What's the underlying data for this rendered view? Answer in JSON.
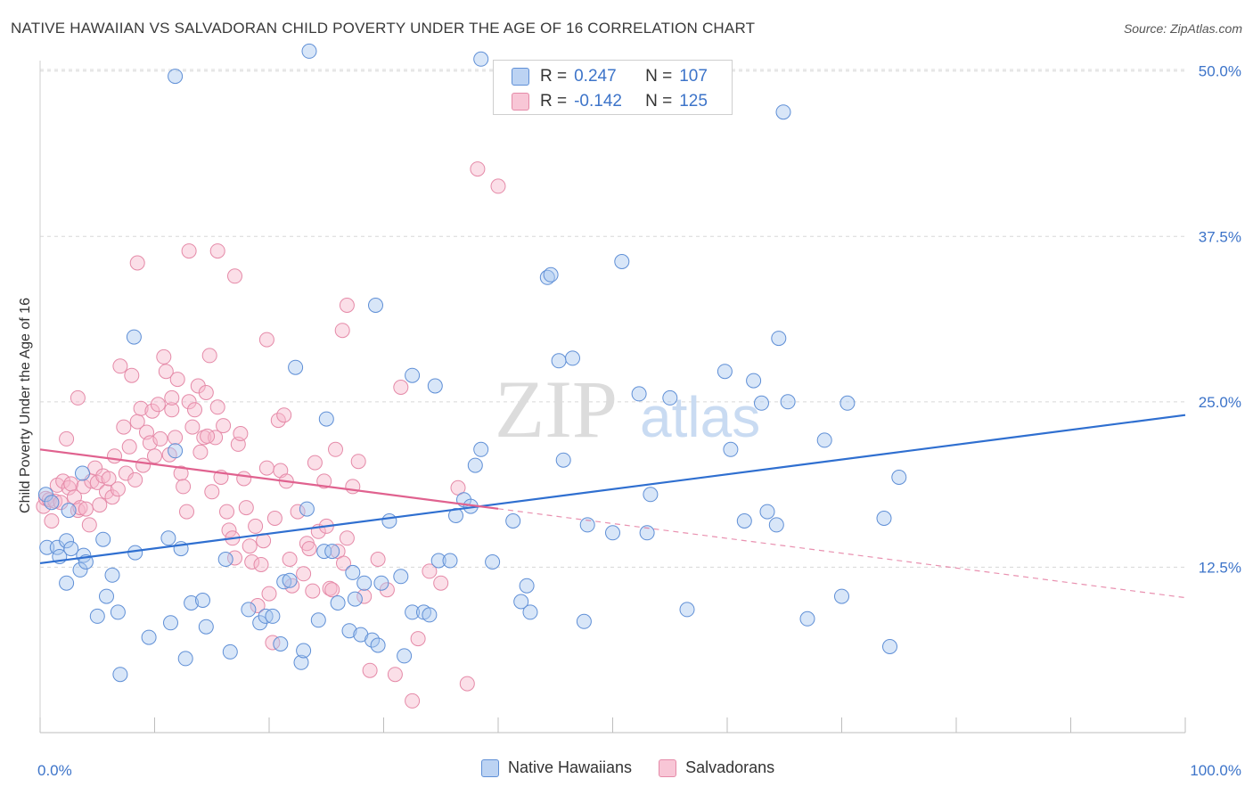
{
  "title": "NATIVE HAWAIIAN VS SALVADORAN CHILD POVERTY UNDER THE AGE OF 16 CORRELATION CHART",
  "source": "Source: ZipAtlas.com",
  "watermark": {
    "zip": "ZIP",
    "atlas": "atlas"
  },
  "legend_top": [
    {
      "r_label": "R =",
      "r_value": "0.247",
      "n_label": "N =",
      "n_value": "107"
    },
    {
      "r_label": "R =",
      "r_value": "-0.142",
      "n_label": "N =",
      "n_value": "125"
    }
  ],
  "bottom_legend": [
    "Native Hawaiians",
    "Salvadorans"
  ],
  "colors": {
    "blue_fill": "#a9c7ef",
    "blue_stroke": "#5f8fd6",
    "blue_line": "#2f6fd0",
    "pink_fill": "#f6b8cc",
    "pink_stroke": "#e58aa8",
    "pink_line": "#e0628f",
    "tick_text": "#3d74c9"
  },
  "chart_data": {
    "type": "scatter",
    "title": "NATIVE HAWAIIAN VS SALVADORAN CHILD POVERTY UNDER THE AGE OF 16 CORRELATION CHART",
    "xlabel": "",
    "ylabel": "Child Poverty Under the Age of 16",
    "xlim": [
      0,
      100
    ],
    "ylim": [
      0,
      52
    ],
    "x_tick_labels": [
      "0.0%",
      "100.0%"
    ],
    "y_ticks": [
      12.5,
      25.0,
      37.5,
      50.0
    ],
    "y_tick_labels": [
      "12.5%",
      "25.0%",
      "37.5%",
      "50.0%"
    ],
    "series": [
      {
        "name": "Native Hawaiians",
        "R": 0.247,
        "N": 107,
        "trend": {
          "x": [
            0,
            100
          ],
          "y": [
            12.8,
            24.0
          ],
          "dashed_from": null
        },
        "points": [
          [
            0.5,
            18.0
          ],
          [
            0.6,
            14.0
          ],
          [
            1.0,
            17.4
          ],
          [
            1.5,
            14.0
          ],
          [
            1.7,
            13.3
          ],
          [
            2.3,
            11.3
          ],
          [
            2.3,
            14.5
          ],
          [
            2.5,
            16.8
          ],
          [
            2.7,
            13.9
          ],
          [
            3.5,
            12.3
          ],
          [
            3.7,
            19.6
          ],
          [
            3.8,
            13.4
          ],
          [
            4.0,
            12.9
          ],
          [
            5.0,
            8.8
          ],
          [
            5.5,
            14.6
          ],
          [
            5.8,
            10.3
          ],
          [
            6.3,
            11.9
          ],
          [
            6.8,
            9.1
          ],
          [
            7.0,
            4.4
          ],
          [
            8.2,
            29.9
          ],
          [
            8.3,
            13.6
          ],
          [
            9.5,
            7.2
          ],
          [
            11.2,
            14.7
          ],
          [
            11.4,
            8.3
          ],
          [
            11.8,
            21.3
          ],
          [
            12.3,
            13.9
          ],
          [
            12.7,
            5.6
          ],
          [
            13.2,
            9.8
          ],
          [
            14.2,
            10.0
          ],
          [
            14.5,
            8.0
          ],
          [
            16.2,
            13.1
          ],
          [
            16.6,
            6.1
          ],
          [
            18.2,
            9.3
          ],
          [
            19.2,
            8.3
          ],
          [
            19.7,
            8.8
          ],
          [
            20.3,
            8.8
          ],
          [
            21.0,
            6.7
          ],
          [
            21.3,
            11.4
          ],
          [
            21.8,
            11.5
          ],
          [
            22.3,
            27.6
          ],
          [
            22.8,
            5.3
          ],
          [
            23.0,
            6.2
          ],
          [
            23.3,
            16.9
          ],
          [
            24.3,
            8.5
          ],
          [
            24.8,
            13.7
          ],
          [
            25.0,
            23.7
          ],
          [
            25.5,
            13.7
          ],
          [
            26.0,
            9.8
          ],
          [
            27.0,
            7.7
          ],
          [
            27.3,
            12.1
          ],
          [
            27.5,
            10.1
          ],
          [
            28.0,
            7.4
          ],
          [
            28.3,
            11.3
          ],
          [
            29.0,
            7.0
          ],
          [
            29.3,
            32.3
          ],
          [
            29.5,
            6.6
          ],
          [
            29.8,
            11.3
          ],
          [
            30.5,
            16.0
          ],
          [
            31.5,
            11.8
          ],
          [
            31.8,
            5.8
          ],
          [
            32.5,
            9.1
          ],
          [
            32.5,
            27.0
          ],
          [
            33.5,
            9.1
          ],
          [
            34.0,
            8.9
          ],
          [
            34.8,
            13.0
          ],
          [
            34.5,
            26.2
          ],
          [
            35.8,
            13.0
          ],
          [
            36.3,
            16.4
          ],
          [
            37.0,
            17.6
          ],
          [
            37.6,
            17.1
          ],
          [
            38.0,
            20.2
          ],
          [
            38.5,
            21.4
          ],
          [
            39.5,
            12.9
          ],
          [
            41.3,
            16.0
          ],
          [
            42.0,
            9.9
          ],
          [
            42.5,
            11.1
          ],
          [
            42.8,
            9.1
          ],
          [
            44.3,
            34.4
          ],
          [
            44.6,
            34.6
          ],
          [
            45.3,
            28.1
          ],
          [
            45.7,
            20.6
          ],
          [
            46.5,
            28.3
          ],
          [
            47.5,
            8.4
          ],
          [
            47.8,
            15.7
          ],
          [
            50.0,
            15.1
          ],
          [
            50.8,
            35.6
          ],
          [
            52.3,
            25.6
          ],
          [
            53.0,
            15.1
          ],
          [
            53.3,
            18.0
          ],
          [
            55.0,
            25.3
          ],
          [
            56.5,
            9.3
          ],
          [
            59.8,
            27.3
          ],
          [
            60.3,
            21.4
          ],
          [
            61.5,
            16.0
          ],
          [
            62.3,
            26.6
          ],
          [
            63.0,
            24.9
          ],
          [
            63.5,
            16.7
          ],
          [
            64.3,
            15.7
          ],
          [
            64.5,
            29.8
          ],
          [
            65.3,
            25.0
          ],
          [
            67.0,
            8.6
          ],
          [
            68.5,
            22.1
          ],
          [
            70.0,
            10.3
          ],
          [
            70.5,
            24.9
          ],
          [
            73.7,
            16.2
          ],
          [
            74.2,
            6.5
          ],
          [
            75.0,
            19.3
          ],
          [
            11.8,
            49.6
          ],
          [
            23.5,
            51.5
          ],
          [
            38.5,
            50.9
          ],
          [
            64.9,
            46.9
          ]
        ]
      },
      {
        "name": "Salvadorans",
        "R": -0.142,
        "N": 125,
        "trend": {
          "x": [
            0,
            100
          ],
          "y": [
            21.4,
            10.2
          ],
          "dashed_from": 40
        },
        "points": [
          [
            0.3,
            17.1
          ],
          [
            0.5,
            17.7
          ],
          [
            0.8,
            17.6
          ],
          [
            1.0,
            16.0
          ],
          [
            1.3,
            17.5
          ],
          [
            1.5,
            18.7
          ],
          [
            1.8,
            17.4
          ],
          [
            2.0,
            19.0
          ],
          [
            2.3,
            22.2
          ],
          [
            2.5,
            18.5
          ],
          [
            2.7,
            18.8
          ],
          [
            3.0,
            17.8
          ],
          [
            3.3,
            16.8
          ],
          [
            3.5,
            17.0
          ],
          [
            3.8,
            18.6
          ],
          [
            4.0,
            16.9
          ],
          [
            4.3,
            15.7
          ],
          [
            4.5,
            19.0
          ],
          [
            4.8,
            20.0
          ],
          [
            5.0,
            18.9
          ],
          [
            5.2,
            17.2
          ],
          [
            5.5,
            19.4
          ],
          [
            5.8,
            18.2
          ],
          [
            6.0,
            19.2
          ],
          [
            6.3,
            17.8
          ],
          [
            6.5,
            20.9
          ],
          [
            6.8,
            18.4
          ],
          [
            7.0,
            27.7
          ],
          [
            7.3,
            23.1
          ],
          [
            7.5,
            19.6
          ],
          [
            7.8,
            21.6
          ],
          [
            8.0,
            27.0
          ],
          [
            8.3,
            19.1
          ],
          [
            8.5,
            23.5
          ],
          [
            8.8,
            24.5
          ],
          [
            9.0,
            20.2
          ],
          [
            9.3,
            22.7
          ],
          [
            9.6,
            21.9
          ],
          [
            9.8,
            24.3
          ],
          [
            10.0,
            20.9
          ],
          [
            10.3,
            24.8
          ],
          [
            10.5,
            22.2
          ],
          [
            10.8,
            28.4
          ],
          [
            11.0,
            27.3
          ],
          [
            11.3,
            21.0
          ],
          [
            11.5,
            24.4
          ],
          [
            11.8,
            22.3
          ],
          [
            12.0,
            26.7
          ],
          [
            12.3,
            19.6
          ],
          [
            12.5,
            18.6
          ],
          [
            12.8,
            16.7
          ],
          [
            13.0,
            25.0
          ],
          [
            13.3,
            23.1
          ],
          [
            13.5,
            24.4
          ],
          [
            13.8,
            26.2
          ],
          [
            14.0,
            21.2
          ],
          [
            14.3,
            22.3
          ],
          [
            14.5,
            25.7
          ],
          [
            14.8,
            28.5
          ],
          [
            15.0,
            18.2
          ],
          [
            15.3,
            22.3
          ],
          [
            15.5,
            24.6
          ],
          [
            15.8,
            19.3
          ],
          [
            16.0,
            23.2
          ],
          [
            16.3,
            16.7
          ],
          [
            16.5,
            15.3
          ],
          [
            16.8,
            14.7
          ],
          [
            17.0,
            13.2
          ],
          [
            17.3,
            21.8
          ],
          [
            17.5,
            22.6
          ],
          [
            17.8,
            19.2
          ],
          [
            18.0,
            17.0
          ],
          [
            18.3,
            14.1
          ],
          [
            18.5,
            12.9
          ],
          [
            18.8,
            15.6
          ],
          [
            19.0,
            9.6
          ],
          [
            19.3,
            12.7
          ],
          [
            19.5,
            14.5
          ],
          [
            19.8,
            20.0
          ],
          [
            20.0,
            10.5
          ],
          [
            20.3,
            6.8
          ],
          [
            20.5,
            16.2
          ],
          [
            20.8,
            23.6
          ],
          [
            21.0,
            19.8
          ],
          [
            21.3,
            24.0
          ],
          [
            21.5,
            19.0
          ],
          [
            21.8,
            13.1
          ],
          [
            22.0,
            11.1
          ],
          [
            22.5,
            16.7
          ],
          [
            23.0,
            12.0
          ],
          [
            23.3,
            14.3
          ],
          [
            23.5,
            13.9
          ],
          [
            23.8,
            10.7
          ],
          [
            24.0,
            20.4
          ],
          [
            24.3,
            15.2
          ],
          [
            24.8,
            19.0
          ],
          [
            25.0,
            15.6
          ],
          [
            25.3,
            10.9
          ],
          [
            25.5,
            10.8
          ],
          [
            25.8,
            21.4
          ],
          [
            26.0,
            13.7
          ],
          [
            26.5,
            12.8
          ],
          [
            26.8,
            14.7
          ],
          [
            27.3,
            18.6
          ],
          [
            27.8,
            20.5
          ],
          [
            28.3,
            10.3
          ],
          [
            28.8,
            4.7
          ],
          [
            29.5,
            13.1
          ],
          [
            30.3,
            10.8
          ],
          [
            31.0,
            4.4
          ],
          [
            31.5,
            26.1
          ],
          [
            32.5,
            2.4
          ],
          [
            33.0,
            7.1
          ],
          [
            34.0,
            12.2
          ],
          [
            35.0,
            11.3
          ],
          [
            36.5,
            18.5
          ],
          [
            37.3,
            3.7
          ],
          [
            38.2,
            42.6
          ],
          [
            40.0,
            41.3
          ],
          [
            13.0,
            36.4
          ],
          [
            15.5,
            36.4
          ],
          [
            17.0,
            34.5
          ],
          [
            8.5,
            35.5
          ],
          [
            26.4,
            30.4
          ],
          [
            26.8,
            32.3
          ],
          [
            14.6,
            22.4
          ],
          [
            11.5,
            25.3
          ],
          [
            3.3,
            25.3
          ],
          [
            19.8,
            29.7
          ]
        ]
      }
    ]
  }
}
